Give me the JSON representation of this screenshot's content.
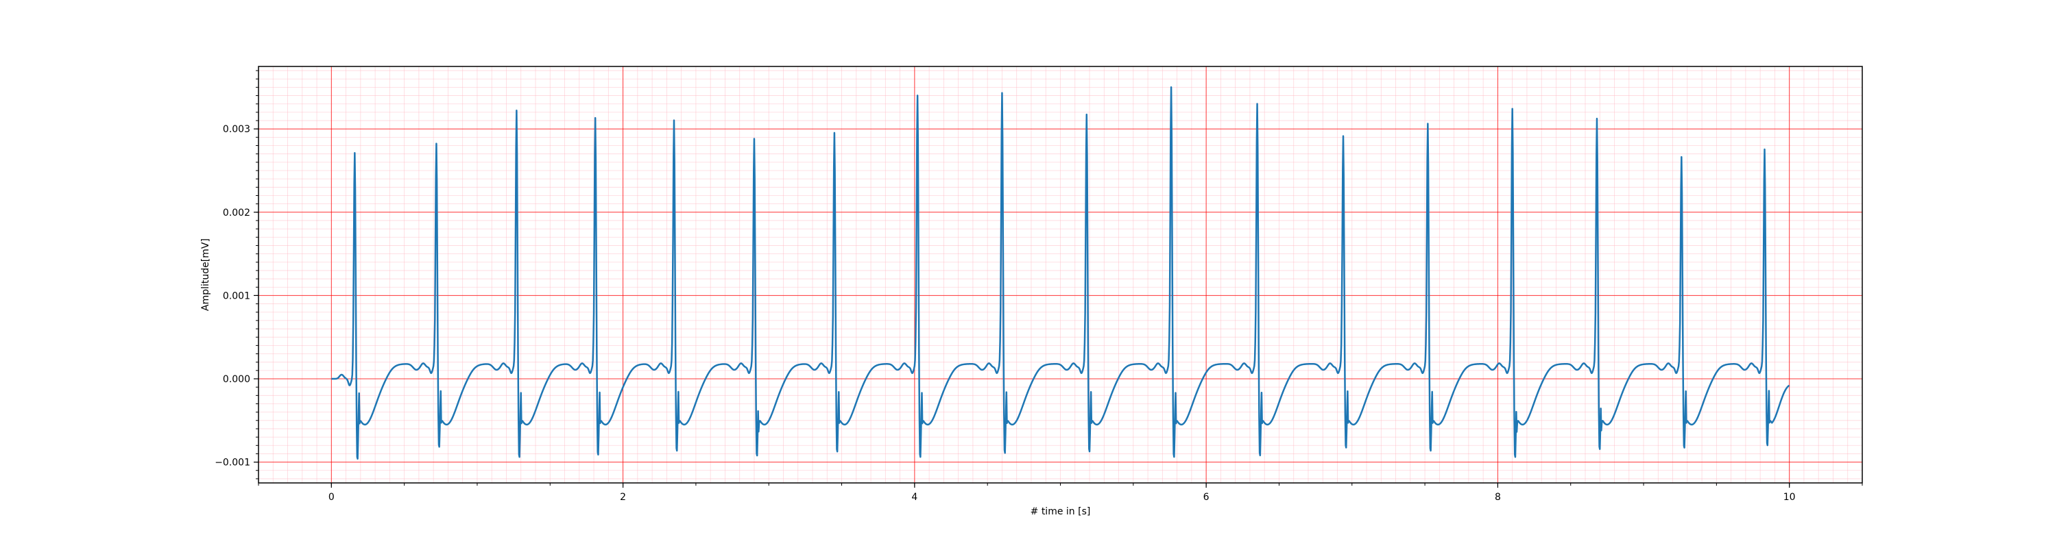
{
  "chart_data": {
    "type": "line",
    "title": "",
    "xlabel": "# time in [s]",
    "ylabel": "Amplitude[mV]",
    "xlim": [
      -0.5,
      10.5
    ],
    "ylim": [
      -0.00125,
      0.00375
    ],
    "x_major_ticks": [
      0,
      2,
      4,
      6,
      8,
      10
    ],
    "x_tick_labels": [
      "0",
      "2",
      "4",
      "6",
      "8",
      "10"
    ],
    "y_major_ticks": [
      -0.001,
      0.0,
      0.001,
      0.002,
      0.003
    ],
    "y_tick_labels": [
      "−0.001",
      "0.000",
      "0.001",
      "0.002",
      "0.003"
    ],
    "grid": {
      "major": true,
      "minor": true,
      "major_color": "#ff0000",
      "minor_color": "#ffb6c1"
    },
    "line_color": "#1f77b4",
    "series": [
      {
        "name": "",
        "x_range": [
          0,
          10
        ],
        "beats": [
          {
            "t": 0.16,
            "r": 0.00273,
            "s": -0.00102
          },
          {
            "t": 0.72,
            "r": 0.00284,
            "s": -0.00087
          },
          {
            "t": 1.27,
            "r": 0.00324,
            "s": -0.001
          },
          {
            "t": 1.81,
            "r": 0.00315,
            "s": -0.00097
          },
          {
            "t": 2.35,
            "r": 0.00312,
            "s": -0.00092
          },
          {
            "t": 2.9,
            "r": 0.0029,
            "s": -0.00098
          },
          {
            "t": 3.45,
            "r": 0.00297,
            "s": -0.00093
          },
          {
            "t": 4.02,
            "r": 0.00342,
            "s": -0.001
          },
          {
            "t": 4.6,
            "r": 0.00345,
            "s": -0.00095
          },
          {
            "t": 5.18,
            "r": 0.00319,
            "s": -0.00093
          },
          {
            "t": 5.76,
            "r": 0.00352,
            "s": -0.001
          },
          {
            "t": 6.35,
            "r": 0.00332,
            "s": -0.00098
          },
          {
            "t": 6.94,
            "r": 0.00293,
            "s": -0.00088
          },
          {
            "t": 7.52,
            "r": 0.00308,
            "s": -0.00092
          },
          {
            "t": 8.1,
            "r": 0.00326,
            "s": -0.001
          },
          {
            "t": 8.68,
            "r": 0.00314,
            "s": -0.0009
          },
          {
            "t": 9.26,
            "r": 0.00268,
            "s": -0.00088
          },
          {
            "t": 9.83,
            "r": 0.00277,
            "s": -0.00085
          }
        ],
        "baseline": {
          "t_wave": 0.00018,
          "st_level": -0.00055
        },
        "end_value": -8e-05
      }
    ]
  }
}
